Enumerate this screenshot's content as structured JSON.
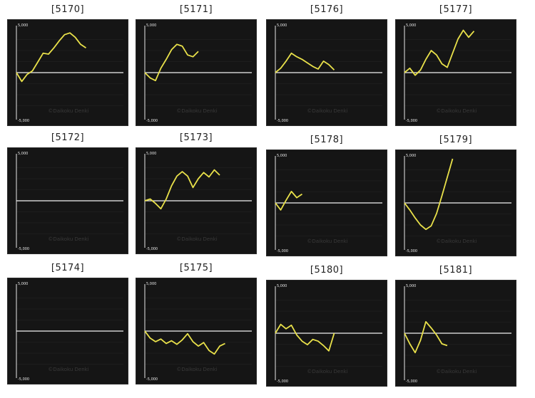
{
  "chart_data": [
    {
      "type": "line",
      "title": "[5170]",
      "y_ticks": [
        "5,000",
        "-5,000"
      ],
      "ylim": [
        -5000,
        5000
      ],
      "watermark": "©Daikoku Denki",
      "x": [
        0,
        5,
        10,
        15,
        20,
        25,
        30,
        35,
        40,
        45,
        50,
        55,
        60,
        65,
        70,
        75,
        80,
        85,
        90,
        95,
        100
      ],
      "y": [
        0,
        -1000,
        -200,
        200,
        1200,
        2200,
        2100,
        2800,
        3600,
        4300,
        4500,
        4000,
        3200,
        2800,
        null,
        null,
        null,
        null,
        null,
        null,
        null
      ]
    },
    {
      "type": "line",
      "title": "[5171]",
      "y_ticks": [
        "5,000",
        "-5,000"
      ],
      "ylim": [
        -5000,
        5000
      ],
      "watermark": "©Daikoku Denki",
      "x": [
        0,
        5,
        10,
        15,
        20,
        25,
        30,
        35,
        40,
        45,
        50,
        55,
        60,
        65,
        70,
        75,
        80,
        85,
        90,
        95,
        100
      ],
      "y": [
        0,
        -600,
        -900,
        500,
        1500,
        2600,
        3200,
        3000,
        2000,
        1800,
        2400,
        null,
        null,
        null,
        null,
        null,
        null,
        null,
        null,
        null,
        null
      ]
    },
    {
      "type": "line",
      "title": "[5176]",
      "y_ticks": [
        "5,000",
        "-5,000"
      ],
      "ylim": [
        -5000,
        5000
      ],
      "watermark": "©Daikoku Denki",
      "x": [
        0,
        5,
        10,
        15,
        20,
        25,
        30,
        35,
        40,
        45,
        50,
        55,
        60,
        65,
        70,
        75,
        80,
        85,
        90,
        95,
        100
      ],
      "y": [
        0,
        500,
        1300,
        2200,
        1800,
        1500,
        1100,
        700,
        400,
        1300,
        900,
        300,
        null,
        null,
        null,
        null,
        null,
        null,
        null,
        null,
        null
      ]
    },
    {
      "type": "line",
      "title": "[5177]",
      "y_ticks": [
        "5,000",
        "-5,000"
      ],
      "ylim": [
        -5000,
        5000
      ],
      "watermark": "©Daikoku Denki",
      "x": [
        0,
        5,
        10,
        15,
        20,
        25,
        30,
        35,
        40,
        45,
        50,
        55,
        60,
        65,
        70,
        75,
        80,
        85,
        90,
        95,
        100
      ],
      "y": [
        0,
        500,
        -300,
        300,
        1500,
        2500,
        2000,
        1000,
        600,
        2200,
        3800,
        4800,
        4000,
        4700,
        null,
        null,
        null,
        null,
        null,
        null,
        null
      ]
    },
    {
      "type": "line",
      "title": "[5172]",
      "y_ticks": [
        "5,000",
        "-5,000"
      ],
      "ylim": [
        -5000,
        5000
      ],
      "watermark": "©Daikoku Denki",
      "x": [],
      "y": []
    },
    {
      "type": "line",
      "title": "[5173]",
      "y_ticks": [
        "5,000",
        "-5,000"
      ],
      "ylim": [
        -5000,
        5000
      ],
      "watermark": "©Daikoku Denki",
      "x": [
        0,
        5,
        10,
        15,
        20,
        25,
        30,
        35,
        40,
        45,
        50,
        55,
        60,
        65,
        70,
        75,
        80,
        85,
        90,
        95,
        100
      ],
      "y": [
        0,
        200,
        -300,
        -900,
        200,
        1700,
        2800,
        3300,
        2800,
        1500,
        2500,
        3200,
        2700,
        3500,
        2900,
        null,
        null,
        null,
        null,
        null,
        null
      ]
    },
    {
      "type": "line",
      "title": "[5178]",
      "y_ticks": [
        "5,000",
        "-5,000"
      ],
      "ylim": [
        -5000,
        5000
      ],
      "watermark": "©Daikoku Denki",
      "x": [
        0,
        5,
        10,
        15,
        20,
        25,
        30,
        35,
        40,
        45,
        50,
        55,
        60,
        65,
        70,
        75,
        80,
        85,
        90,
        95,
        100
      ],
      "y": [
        0,
        -800,
        300,
        1300,
        600,
        1000,
        null,
        null,
        null,
        null,
        null,
        null,
        null,
        null,
        null,
        null,
        null,
        null,
        null,
        null,
        null
      ]
    },
    {
      "type": "line",
      "title": "[5179]",
      "y_ticks": [
        "5,000",
        "-5,000"
      ],
      "ylim": [
        -5000,
        5000
      ],
      "watermark": "©Daikoku Denki",
      "x": [
        0,
        5,
        10,
        15,
        20,
        25,
        30,
        35,
        40,
        45,
        50,
        55,
        60,
        65,
        70,
        75,
        80,
        85,
        90,
        95,
        100
      ],
      "y": [
        0,
        -800,
        -1700,
        -2500,
        -3000,
        -2600,
        -1200,
        800,
        2900,
        5000,
        null,
        null,
        null,
        null,
        null,
        null,
        null,
        null,
        null,
        null,
        null
      ]
    },
    {
      "type": "line",
      "title": "[5174]",
      "y_ticks": [
        "5,000",
        "-5,000"
      ],
      "ylim": [
        -5000,
        5000
      ],
      "watermark": "©Daikoku Denki",
      "x": [],
      "y": []
    },
    {
      "type": "line",
      "title": "[5175]",
      "y_ticks": [
        "5,000",
        "-5,000"
      ],
      "ylim": [
        -5000,
        5000
      ],
      "watermark": "©Daikoku Denki",
      "x": [
        0,
        5,
        10,
        15,
        20,
        25,
        30,
        35,
        40,
        45,
        50,
        55,
        60,
        65,
        70,
        75,
        80,
        85,
        90,
        95,
        100
      ],
      "y": [
        0,
        -800,
        -1200,
        -900,
        -1400,
        -1100,
        -1500,
        -1000,
        -300,
        -1200,
        -1700,
        -1300,
        -2200,
        -2600,
        -1700,
        -1400,
        null,
        null,
        null,
        null,
        null
      ]
    },
    {
      "type": "line",
      "title": "[5180]",
      "y_ticks": [
        "5,000",
        "-5,000"
      ],
      "ylim": [
        -5000,
        5000
      ],
      "watermark": "©Daikoku Denki",
      "x": [
        0,
        5,
        10,
        15,
        20,
        25,
        30,
        35,
        40,
        45,
        50,
        55,
        60,
        65,
        70,
        75,
        80,
        85,
        90,
        95,
        100
      ],
      "y": [
        0,
        1000,
        500,
        900,
        -200,
        -900,
        -1300,
        -700,
        -900,
        -1400,
        -2000,
        0,
        null,
        null,
        null,
        null,
        null,
        null,
        null,
        null,
        null
      ]
    },
    {
      "type": "line",
      "title": "[5181]",
      "y_ticks": [
        "5,000",
        "-5,000"
      ],
      "ylim": [
        -5000,
        5000
      ],
      "watermark": "©Daikoku Denki",
      "x": [
        0,
        5,
        10,
        15,
        20,
        25,
        30,
        35,
        40,
        45,
        50,
        55,
        60,
        65,
        70,
        75,
        80,
        85,
        90,
        95,
        100
      ],
      "y": [
        0,
        -1200,
        -2200,
        -800,
        1300,
        600,
        -200,
        -1200,
        -1400,
        null,
        null,
        null,
        null,
        null,
        null,
        null,
        null,
        null,
        null,
        null,
        null
      ]
    }
  ]
}
